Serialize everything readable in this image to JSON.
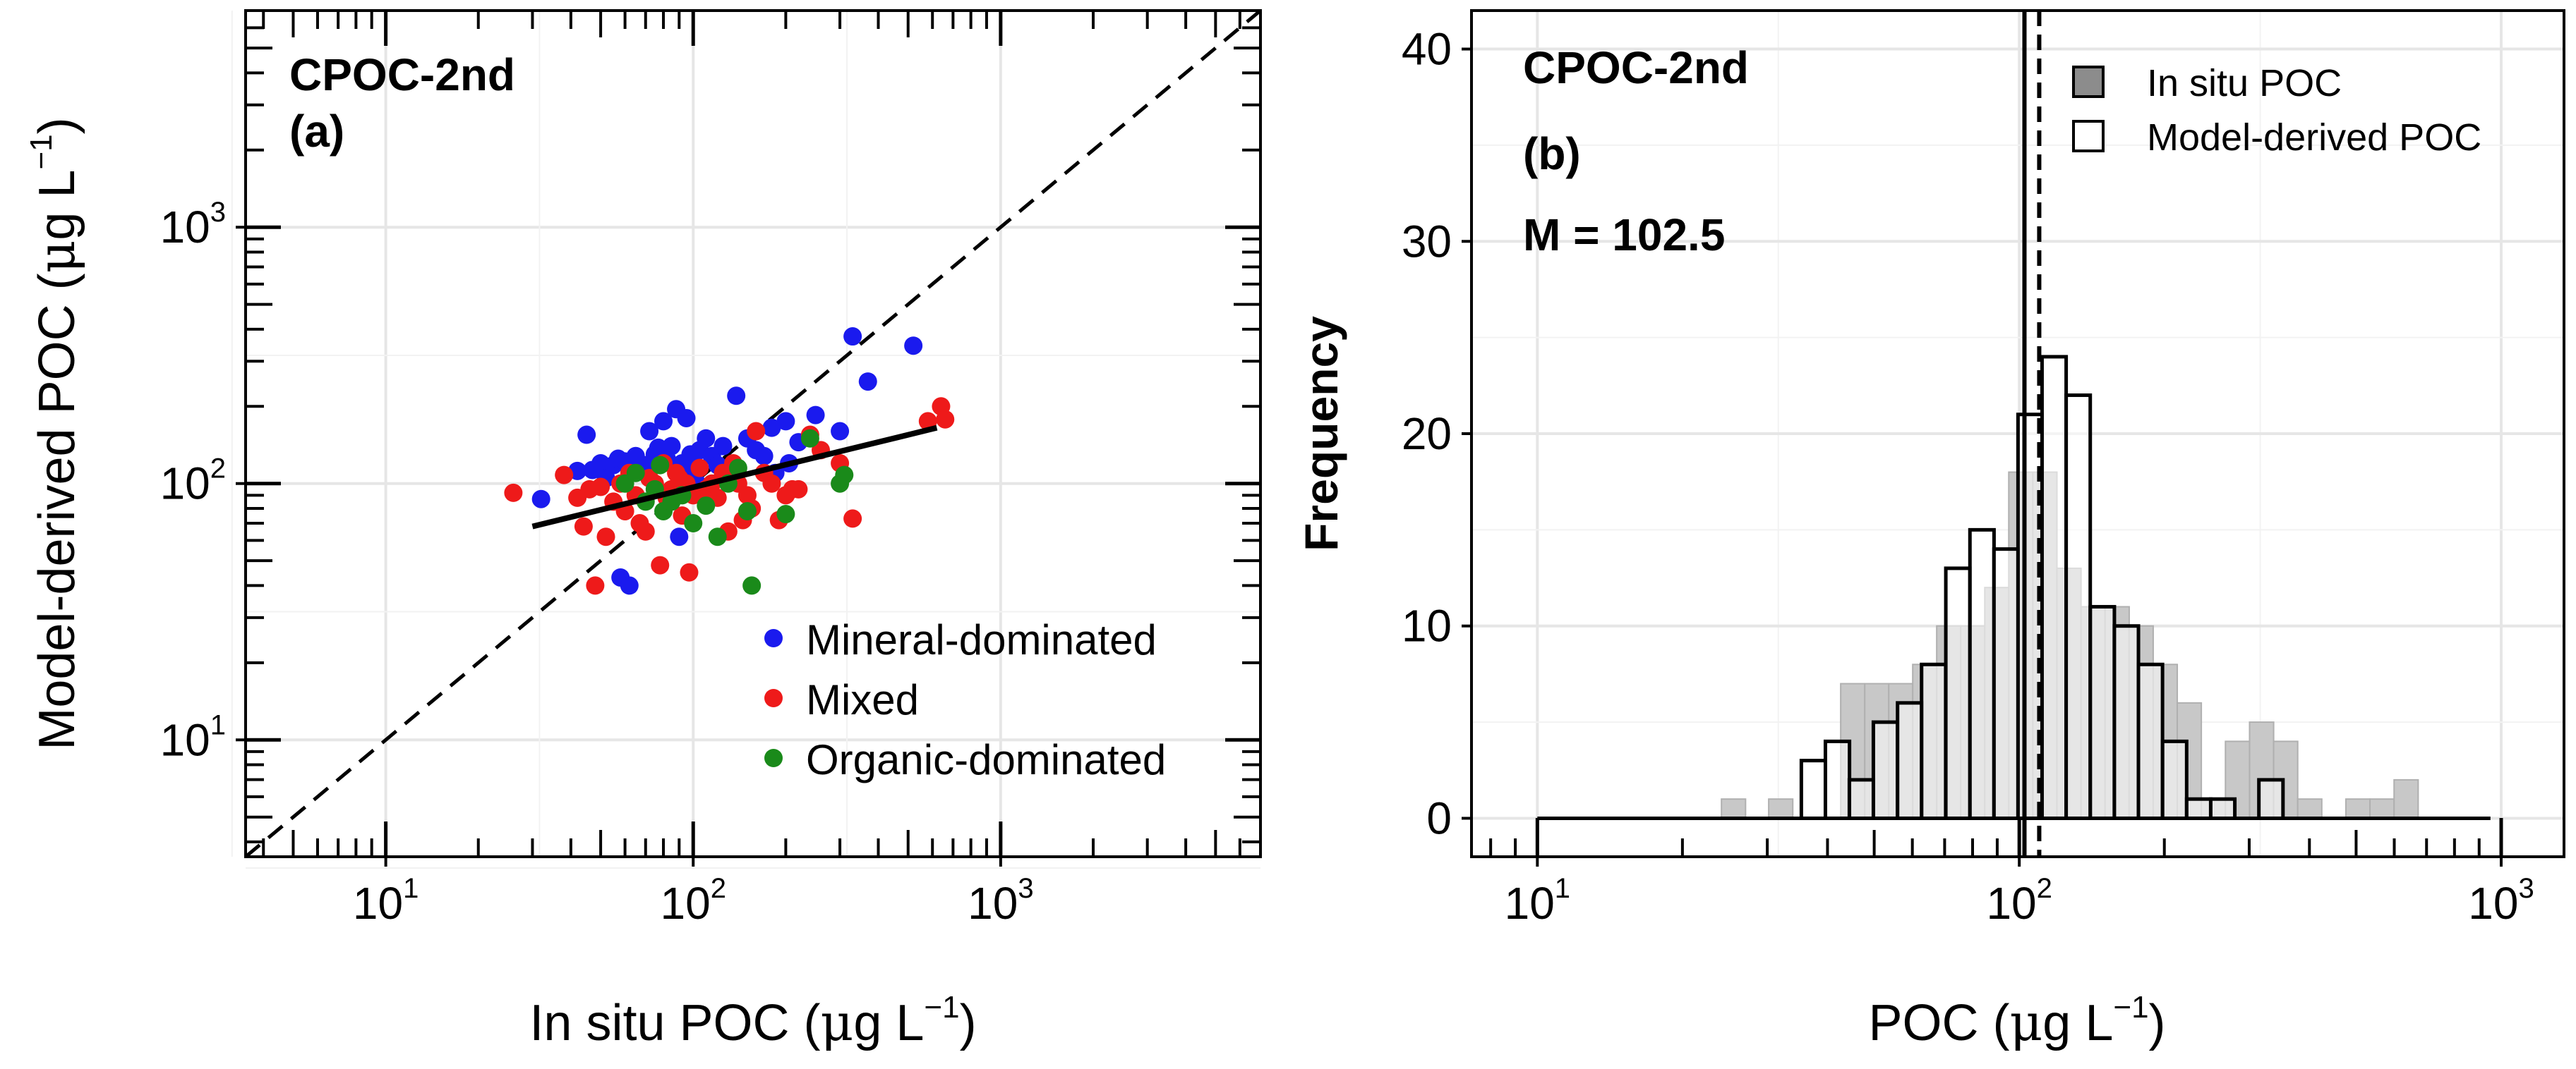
{
  "chart_data": [
    {
      "type": "scatter",
      "panel_label": "CPOC-2nd",
      "panel_letter": "(a)",
      "xlabel": {
        "main": "In situ POC (",
        "mu": "μ",
        "unit": "g L",
        "exp": "−1",
        "close": ")"
      },
      "ylabel": {
        "main": "Model-derived POC (",
        "mu": "μ",
        "unit": "g L",
        "exp": "−1",
        "close": ")"
      },
      "x_scale": "log10",
      "y_scale": "log10",
      "xlim": [
        3.5,
        7000
      ],
      "ylim": [
        3.5,
        7000
      ],
      "x_ticks": [
        {
          "value": 10,
          "base": "10",
          "exp": "1"
        },
        {
          "value": 100,
          "base": "10",
          "exp": "2"
        },
        {
          "value": 1000,
          "base": "10",
          "exp": "3"
        }
      ],
      "y_ticks": [
        {
          "value": 10,
          "base": "10",
          "exp": "1"
        },
        {
          "value": 100,
          "base": "10",
          "exp": "2"
        },
        {
          "value": 1000,
          "base": "10",
          "exp": "3"
        }
      ],
      "grid": true,
      "reference_line": {
        "name": "1:1 line",
        "style": "dashed",
        "from": [
          3.5,
          3.5
        ],
        "to": [
          7000,
          7000
        ]
      },
      "fit_line": {
        "name": "regression",
        "style": "solid",
        "from": [
          30,
          68
        ],
        "to": [
          620,
          165
        ]
      },
      "legend_position": "bottom-right",
      "series": [
        {
          "name": "Mineral-dominated",
          "color": "#1a1aee",
          "points": [
            [
              32,
              87
            ],
            [
              42,
              112
            ],
            [
              45,
              155
            ],
            [
              47,
              113
            ],
            [
              50,
              120
            ],
            [
              52,
              105
            ],
            [
              55,
              118
            ],
            [
              57,
              125
            ],
            [
              58,
              43
            ],
            [
              60,
              122
            ],
            [
              62,
              40
            ],
            [
              65,
              128
            ],
            [
              67,
              112
            ],
            [
              70,
              118
            ],
            [
              72,
              160
            ],
            [
              75,
              130
            ],
            [
              77,
              138
            ],
            [
              80,
              175
            ],
            [
              82,
              125
            ],
            [
              85,
              140
            ],
            [
              88,
              195
            ],
            [
              90,
              62
            ],
            [
              92,
              120
            ],
            [
              95,
              180
            ],
            [
              98,
              130
            ],
            [
              100,
              115
            ],
            [
              103,
              100
            ],
            [
              105,
              135
            ],
            [
              110,
              150
            ],
            [
              115,
              128
            ],
            [
              120,
              118
            ],
            [
              125,
              140
            ],
            [
              130,
              110
            ],
            [
              138,
              220
            ],
            [
              150,
              150
            ],
            [
              160,
              135
            ],
            [
              170,
              128
            ],
            [
              180,
              165
            ],
            [
              185,
              110
            ],
            [
              200,
              175
            ],
            [
              205,
              120
            ],
            [
              220,
              145
            ],
            [
              250,
              185
            ],
            [
              300,
              160
            ],
            [
              330,
              375
            ],
            [
              370,
              250
            ],
            [
              520,
              345
            ]
          ]
        },
        {
          "name": "Mixed",
          "color": "#ee1a1a",
          "points": [
            [
              26,
              92
            ],
            [
              38,
              108
            ],
            [
              42,
              88
            ],
            [
              44,
              68
            ],
            [
              46,
              95
            ],
            [
              48,
              40
            ],
            [
              50,
              97
            ],
            [
              52,
              62
            ],
            [
              55,
              85
            ],
            [
              58,
              100
            ],
            [
              60,
              78
            ],
            [
              62,
              110
            ],
            [
              65,
              90
            ],
            [
              67,
              70
            ],
            [
              70,
              65
            ],
            [
              72,
              105
            ],
            [
              75,
              100
            ],
            [
              78,
              48
            ],
            [
              80,
              120
            ],
            [
              82,
              88
            ],
            [
              85,
              95
            ],
            [
              88,
              110
            ],
            [
              90,
              105
            ],
            [
              92,
              75
            ],
            [
              95,
              100
            ],
            [
              97,
              45
            ],
            [
              100,
              90
            ],
            [
              105,
              115
            ],
            [
              110,
              95
            ],
            [
              115,
              100
            ],
            [
              120,
              88
            ],
            [
              125,
              110
            ],
            [
              130,
              65
            ],
            [
              135,
              120
            ],
            [
              140,
              100
            ],
            [
              145,
              72
            ],
            [
              150,
              90
            ],
            [
              155,
              80
            ],
            [
              160,
              160
            ],
            [
              170,
              110
            ],
            [
              180,
              100
            ],
            [
              190,
              72
            ],
            [
              200,
              90
            ],
            [
              210,
              95
            ],
            [
              220,
              95
            ],
            [
              240,
              155
            ],
            [
              260,
              135
            ],
            [
              300,
              120
            ],
            [
              330,
              73
            ],
            [
              580,
              175
            ],
            [
              640,
              200
            ],
            [
              660,
              178
            ]
          ]
        },
        {
          "name": "Organic-dominated",
          "color": "#1a8a1a",
          "points": [
            [
              60,
              100
            ],
            [
              65,
              110
            ],
            [
              70,
              85
            ],
            [
              75,
              95
            ],
            [
              78,
              118
            ],
            [
              80,
              78
            ],
            [
              85,
              85
            ],
            [
              92,
              90
            ],
            [
              100,
              70
            ],
            [
              110,
              82
            ],
            [
              120,
              62
            ],
            [
              130,
              100
            ],
            [
              140,
              115
            ],
            [
              150,
              78
            ],
            [
              155,
              40
            ],
            [
              200,
              76
            ],
            [
              240,
              150
            ],
            [
              300,
              100
            ],
            [
              310,
              108
            ]
          ]
        }
      ]
    },
    {
      "type": "histogram",
      "panel_label": "CPOC-2nd",
      "panel_letter": "(b)",
      "annotation": "M = 102.5",
      "xlabel": {
        "main": "POC (",
        "mu": "μ",
        "unit": "g L",
        "exp": "−1",
        "close": ")"
      },
      "ylabel": "Frequency",
      "x_scale": "log10",
      "xlim": [
        7.3,
        1350
      ],
      "ylim": [
        -2,
        42
      ],
      "x_ticks": [
        {
          "value": 10,
          "base": "10",
          "exp": "1"
        },
        {
          "value": 100,
          "base": "10",
          "exp": "2"
        },
        {
          "value": 1000,
          "base": "10",
          "exp": "3"
        }
      ],
      "y_ticks": [
        0,
        10,
        20,
        30,
        40
      ],
      "grid": true,
      "bin_width_log10": 0.05,
      "baseline_range": [
        10,
        950
      ],
      "legend_position": "top-right",
      "vlines": [
        {
          "name": "median in situ",
          "value": 102.5,
          "style": "solid"
        },
        {
          "name": "median model-derived",
          "value": 110,
          "style": "dashed"
        }
      ],
      "series": [
        {
          "name": "In situ POC",
          "fill": "#c8c8c8",
          "stroke": "#b0b0b0",
          "bins": [
            {
              "start": 24.1,
              "count": 1
            },
            {
              "start": 30.2,
              "count": 1
            },
            {
              "start": 42.6,
              "count": 7
            },
            {
              "start": 47.8,
              "count": 7
            },
            {
              "start": 53.6,
              "count": 7
            },
            {
              "start": 60.1,
              "count": 8
            },
            {
              "start": 67.4,
              "count": 10
            },
            {
              "start": 75.6,
              "count": 10
            },
            {
              "start": 84.8,
              "count": 12
            },
            {
              "start": 95.1,
              "count": 18
            },
            {
              "start": 106.7,
              "count": 18
            },
            {
              "start": 119.7,
              "count": 13
            },
            {
              "start": 134.3,
              "count": 11
            },
            {
              "start": 150.7,
              "count": 11
            },
            {
              "start": 169.0,
              "count": 10
            },
            {
              "start": 189.6,
              "count": 8
            },
            {
              "start": 212.7,
              "count": 6
            },
            {
              "start": 238.7,
              "count": 1
            },
            {
              "start": 267.8,
              "count": 4
            },
            {
              "start": 300.5,
              "count": 5
            },
            {
              "start": 337.1,
              "count": 4
            },
            {
              "start": 378.2,
              "count": 1
            },
            {
              "start": 476.1,
              "count": 1
            },
            {
              "start": 534.2,
              "count": 1
            },
            {
              "start": 599.4,
              "count": 2
            }
          ]
        },
        {
          "name": "Model-derived POC",
          "fill": "#ffffff",
          "stroke": "#000000",
          "bins": [
            {
              "start": 35.3,
              "count": 3
            },
            {
              "start": 39.6,
              "count": 4
            },
            {
              "start": 44.4,
              "count": 2
            },
            {
              "start": 49.8,
              "count": 5
            },
            {
              "start": 55.9,
              "count": 6
            },
            {
              "start": 62.7,
              "count": 8
            },
            {
              "start": 70.4,
              "count": 13
            },
            {
              "start": 79.0,
              "count": 15
            },
            {
              "start": 88.6,
              "count": 14
            },
            {
              "start": 99.4,
              "count": 21
            },
            {
              "start": 111.5,
              "count": 24
            },
            {
              "start": 125.1,
              "count": 22
            },
            {
              "start": 140.4,
              "count": 11
            },
            {
              "start": 157.5,
              "count": 10
            },
            {
              "start": 176.7,
              "count": 8
            },
            {
              "start": 198.3,
              "count": 4
            },
            {
              "start": 222.5,
              "count": 1
            },
            {
              "start": 249.6,
              "count": 1
            },
            {
              "start": 314.2,
              "count": 2
            }
          ]
        }
      ]
    }
  ]
}
